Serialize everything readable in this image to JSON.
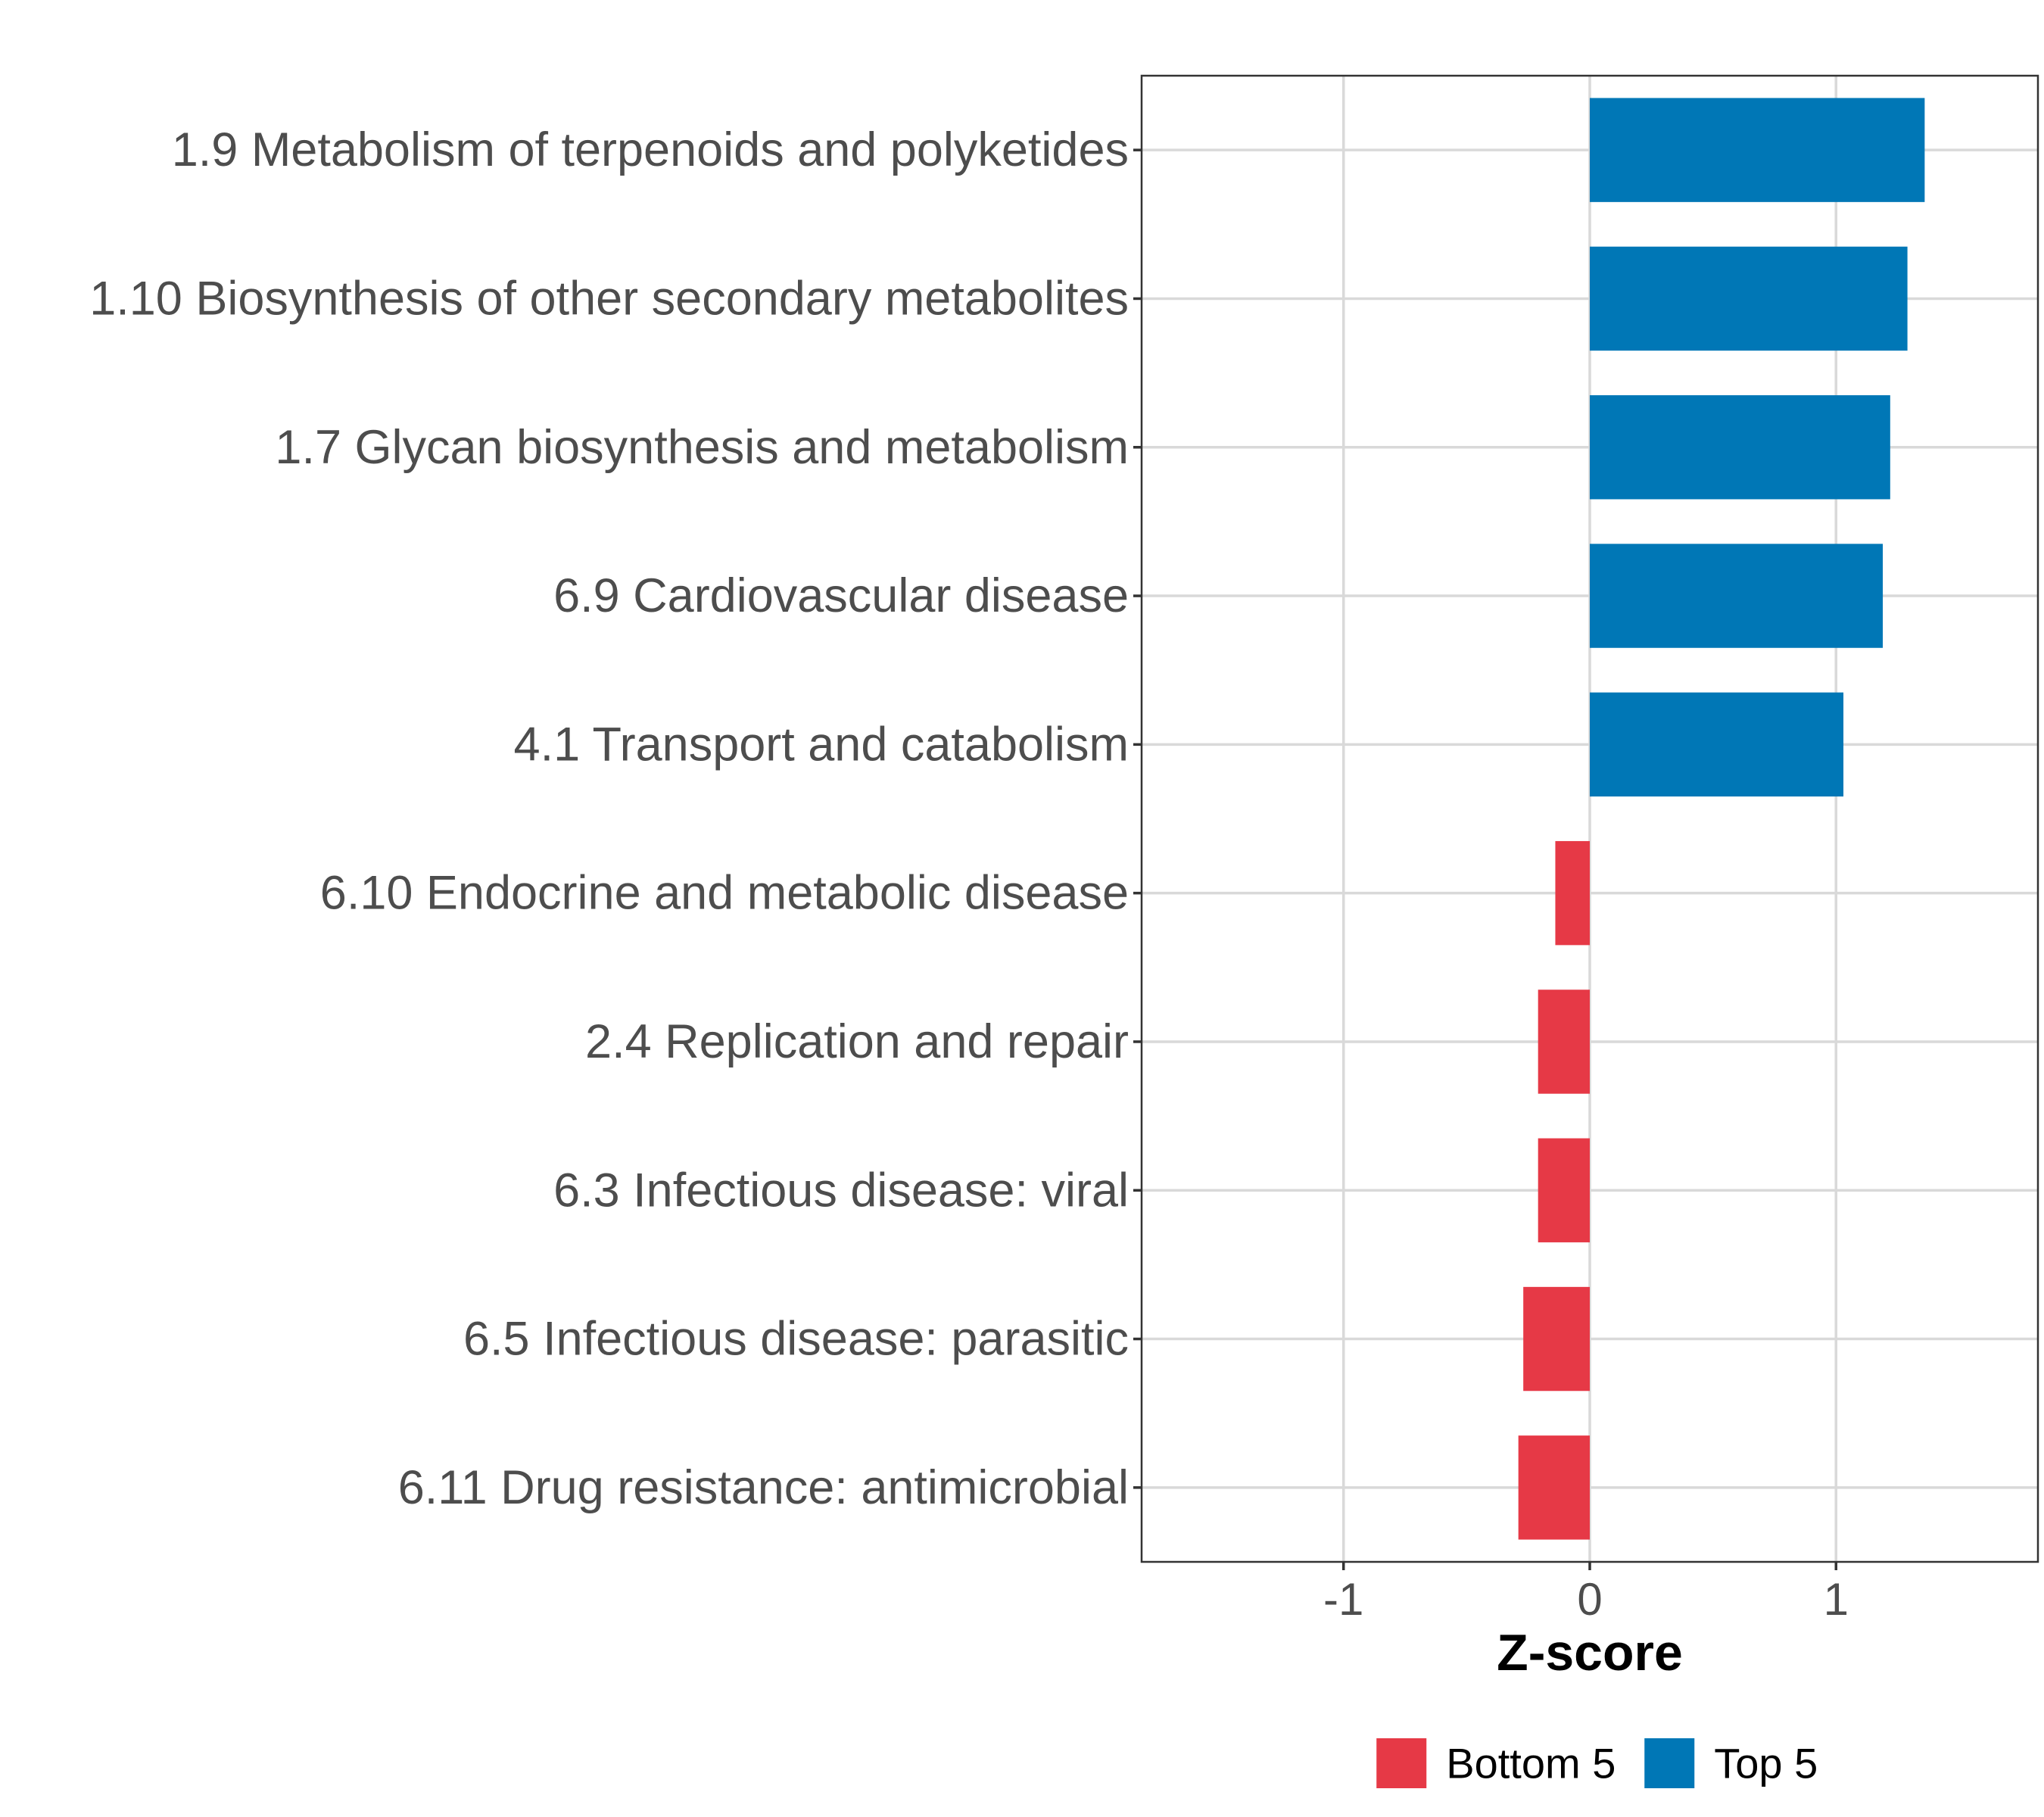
{
  "chart_data": {
    "type": "bar",
    "orientation": "horizontal",
    "title": "",
    "xlabel": "Z-score",
    "ylabel": "",
    "xlim": [
      -1.82,
      1.82
    ],
    "xticks": [
      -1,
      0,
      1
    ],
    "xtick_labels": [
      "-1",
      "0",
      "1"
    ],
    "grid": true,
    "legend_position": "bottom",
    "colors": {
      "Bottom 5": "#e63946",
      "Top 5": "#0077b6"
    },
    "legend": [
      {
        "label": "Bottom 5",
        "color": "#e63946"
      },
      {
        "label": "Top 5",
        "color": "#0077b6"
      }
    ],
    "categories": [
      "1.9 Metabolism of terpenoids and polyketides",
      "1.10 Biosynthesis of other secondary metabolites",
      "1.7 Glycan biosynthesis and metabolism",
      "6.9 Cardiovascular disease",
      "4.1 Transport and catabolism",
      "6.10 Endocrine and metabolic disease",
      "2.4 Replication and repair",
      "6.3 Infectious disease: viral",
      "6.5 Infectious disease: parasitic",
      "6.11 Drug resistance: antimicrobial"
    ],
    "values": [
      1.36,
      1.29,
      1.22,
      1.19,
      1.03,
      -0.14,
      -0.21,
      -0.21,
      -0.27,
      -0.29
    ],
    "groups": [
      "Top 5",
      "Top 5",
      "Top 5",
      "Top 5",
      "Top 5",
      "Bottom 5",
      "Bottom 5",
      "Bottom 5",
      "Bottom 5",
      "Bottom 5"
    ]
  }
}
